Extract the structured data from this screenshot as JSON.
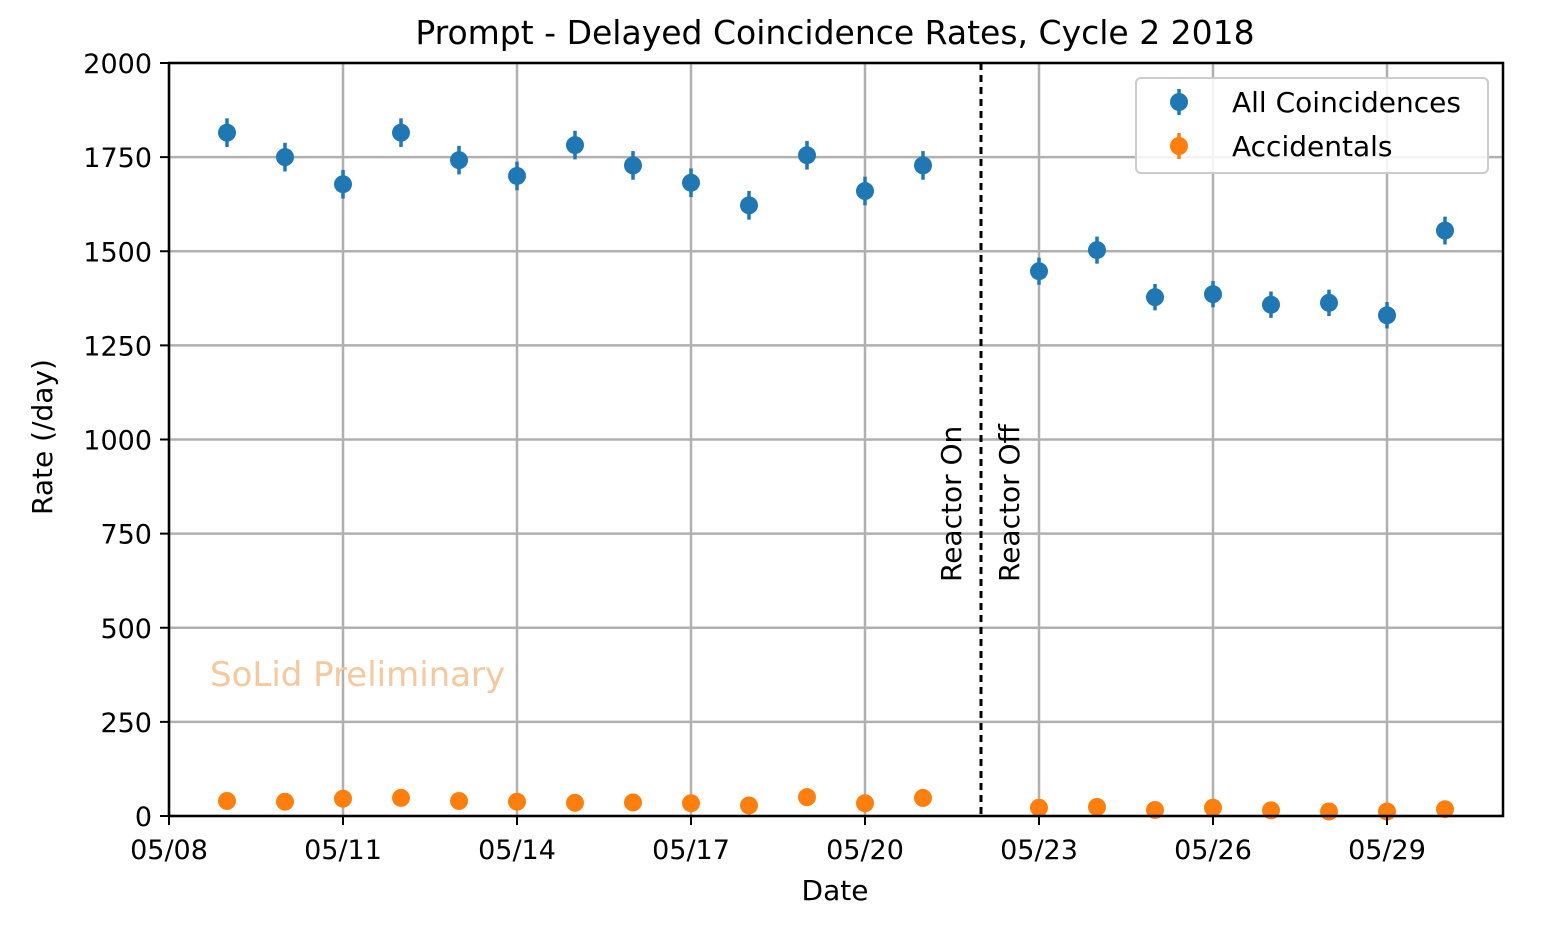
{
  "chart_data": {
    "type": "scatter",
    "title": "Prompt - Delayed Coincidence Rates, Cycle 2 2018",
    "xlabel": "Date",
    "ylabel": "Rate (/day)",
    "x_axis": {
      "type": "date",
      "range": [
        "2018-05-08",
        "2018-05-31"
      ],
      "ticks": [
        "05/08",
        "05/11",
        "05/14",
        "05/17",
        "05/20",
        "05/23",
        "05/26",
        "05/29"
      ]
    },
    "ylim": [
      0,
      2000
    ],
    "yticks": [
      0,
      250,
      500,
      750,
      1000,
      1250,
      1500,
      1750,
      2000
    ],
    "grid": true,
    "legend": {
      "position": "top-right"
    },
    "series": [
      {
        "name": "All Coincidences",
        "color": "#1f77b4",
        "errorbars": true,
        "points": [
          {
            "x": "2018-05-09",
            "y": 1815,
            "err": 38
          },
          {
            "x": "2018-05-10",
            "y": 1750,
            "err": 38
          },
          {
            "x": "2018-05-11",
            "y": 1678,
            "err": 38
          },
          {
            "x": "2018-05-12",
            "y": 1815,
            "err": 38
          },
          {
            "x": "2018-05-13",
            "y": 1742,
            "err": 38
          },
          {
            "x": "2018-05-14",
            "y": 1700,
            "err": 38
          },
          {
            "x": "2018-05-15",
            "y": 1782,
            "err": 38
          },
          {
            "x": "2018-05-16",
            "y": 1728,
            "err": 38
          },
          {
            "x": "2018-05-17",
            "y": 1682,
            "err": 38
          },
          {
            "x": "2018-05-18",
            "y": 1622,
            "err": 38
          },
          {
            "x": "2018-05-19",
            "y": 1755,
            "err": 38
          },
          {
            "x": "2018-05-20",
            "y": 1660,
            "err": 38
          },
          {
            "x": "2018-05-21",
            "y": 1728,
            "err": 38
          },
          {
            "x": "2018-05-23",
            "y": 1447,
            "err": 36
          },
          {
            "x": "2018-05-24",
            "y": 1503,
            "err": 36
          },
          {
            "x": "2018-05-25",
            "y": 1378,
            "err": 35
          },
          {
            "x": "2018-05-26",
            "y": 1386,
            "err": 35
          },
          {
            "x": "2018-05-27",
            "y": 1358,
            "err": 35
          },
          {
            "x": "2018-05-28",
            "y": 1363,
            "err": 35
          },
          {
            "x": "2018-05-29",
            "y": 1330,
            "err": 35
          },
          {
            "x": "2018-05-30",
            "y": 1555,
            "err": 37
          }
        ]
      },
      {
        "name": "Accidentals",
        "color": "#ff7f0e",
        "errorbars": true,
        "points": [
          {
            "x": "2018-05-09",
            "y": 40,
            "err": 6
          },
          {
            "x": "2018-05-10",
            "y": 38,
            "err": 6
          },
          {
            "x": "2018-05-11",
            "y": 46,
            "err": 6
          },
          {
            "x": "2018-05-12",
            "y": 48,
            "err": 6
          },
          {
            "x": "2018-05-13",
            "y": 40,
            "err": 6
          },
          {
            "x": "2018-05-14",
            "y": 38,
            "err": 6
          },
          {
            "x": "2018-05-15",
            "y": 35,
            "err": 6
          },
          {
            "x": "2018-05-16",
            "y": 36,
            "err": 6
          },
          {
            "x": "2018-05-17",
            "y": 34,
            "err": 6
          },
          {
            "x": "2018-05-18",
            "y": 28,
            "err": 6
          },
          {
            "x": "2018-05-19",
            "y": 50,
            "err": 6
          },
          {
            "x": "2018-05-20",
            "y": 34,
            "err": 6
          },
          {
            "x": "2018-05-21",
            "y": 48,
            "err": 6
          },
          {
            "x": "2018-05-23",
            "y": 22,
            "err": 5
          },
          {
            "x": "2018-05-24",
            "y": 24,
            "err": 5
          },
          {
            "x": "2018-05-25",
            "y": 16,
            "err": 5
          },
          {
            "x": "2018-05-26",
            "y": 22,
            "err": 5
          },
          {
            "x": "2018-05-27",
            "y": 15,
            "err": 5
          },
          {
            "x": "2018-05-28",
            "y": 12,
            "err": 5
          },
          {
            "x": "2018-05-29",
            "y": 12,
            "err": 5
          },
          {
            "x": "2018-05-30",
            "y": 18,
            "err": 5
          }
        ]
      }
    ],
    "annotations": [
      {
        "type": "vline",
        "x": "2018-05-22",
        "style": "dashed",
        "color": "#000000"
      },
      {
        "type": "text",
        "text": "Reactor On",
        "x": "2018-05-22",
        "side": "left",
        "rotation": 90
      },
      {
        "type": "text",
        "text": "Reactor Off",
        "x": "2018-05-22",
        "side": "right",
        "rotation": 90
      },
      {
        "type": "watermark",
        "text": "SoLid Preliminary",
        "color": "#f5c89e"
      }
    ]
  }
}
